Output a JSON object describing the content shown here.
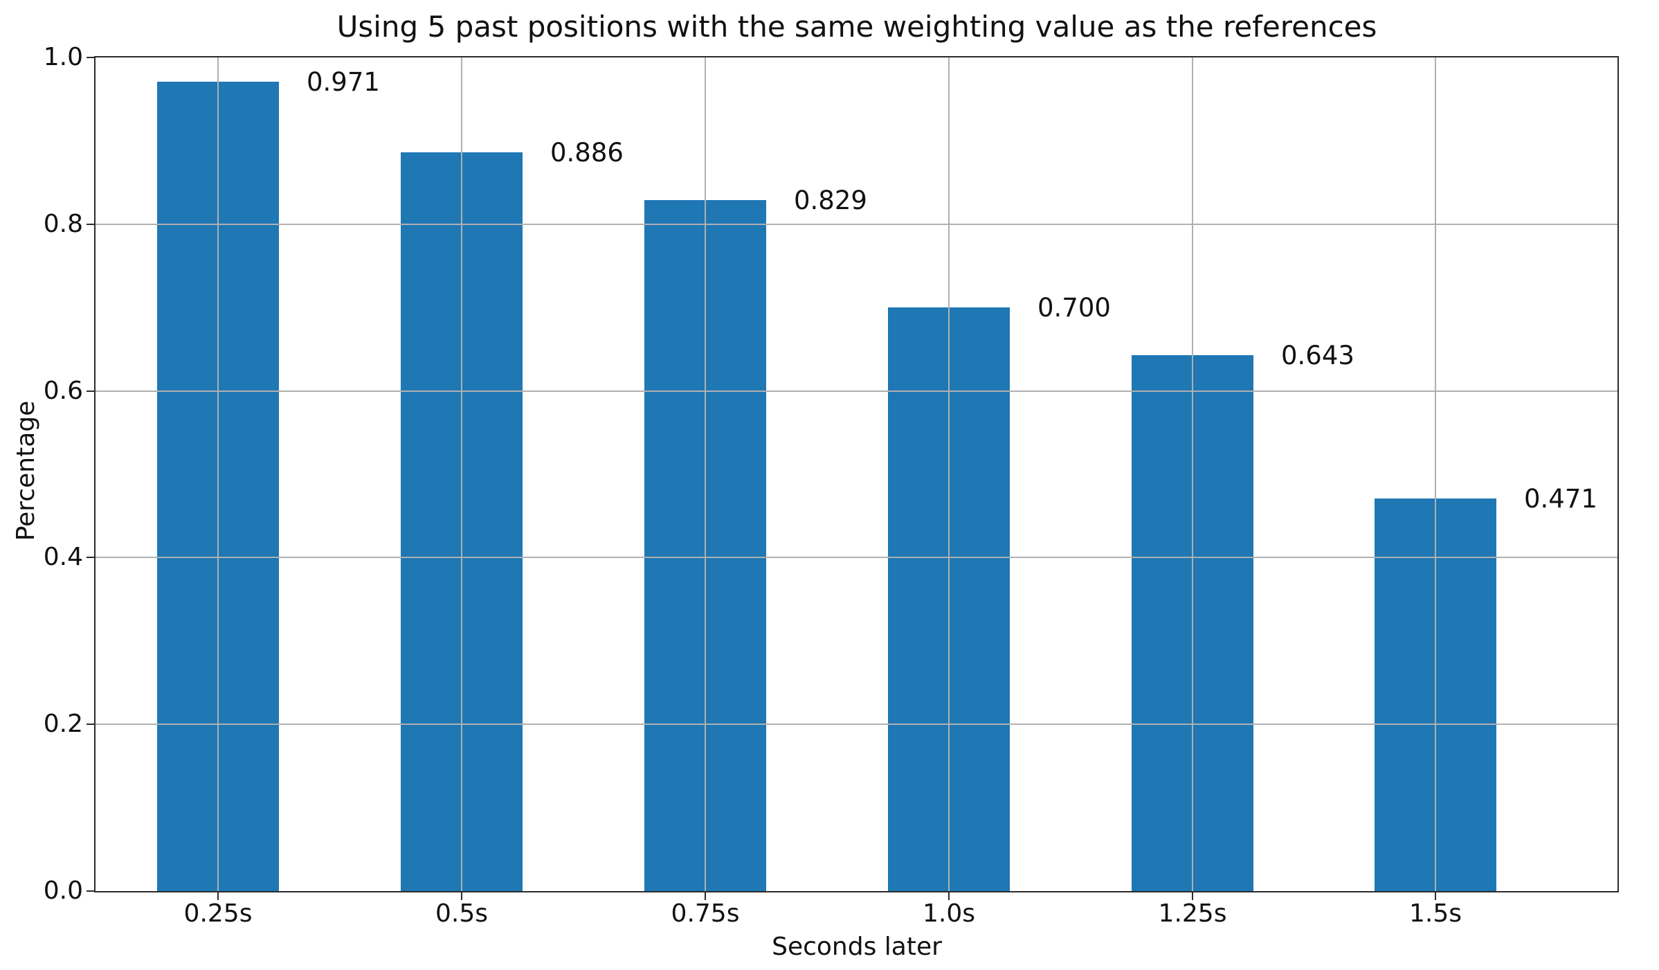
{
  "chart_data": {
    "type": "bar",
    "title": "Using 5 past positions with the same weighting value as the references",
    "xlabel": "Seconds later",
    "ylabel": "Percentage",
    "categories": [
      "0.25s",
      "0.5s",
      "0.75s",
      "1.0s",
      "1.25s",
      "1.5s"
    ],
    "values": [
      0.971,
      0.886,
      0.829,
      0.7,
      0.643,
      0.471
    ],
    "value_labels": [
      "0.971",
      "0.886",
      "0.829",
      "0.700",
      "0.643",
      "0.471"
    ],
    "ylim": [
      0.0,
      1.0
    ],
    "yticks": [
      0.0,
      0.2,
      0.4,
      0.6,
      0.8,
      1.0
    ],
    "ytick_labels": [
      "0.0",
      "0.2",
      "0.4",
      "0.6",
      "0.8",
      "1.0"
    ],
    "grid": true,
    "grid_over_bars": true,
    "legend": null,
    "bar_color": "#1f77b4",
    "grid_color": "#b0b0b0",
    "spine_color": "#2b2b2b",
    "text_color": "#111111",
    "background_color": "#ffffff"
  }
}
